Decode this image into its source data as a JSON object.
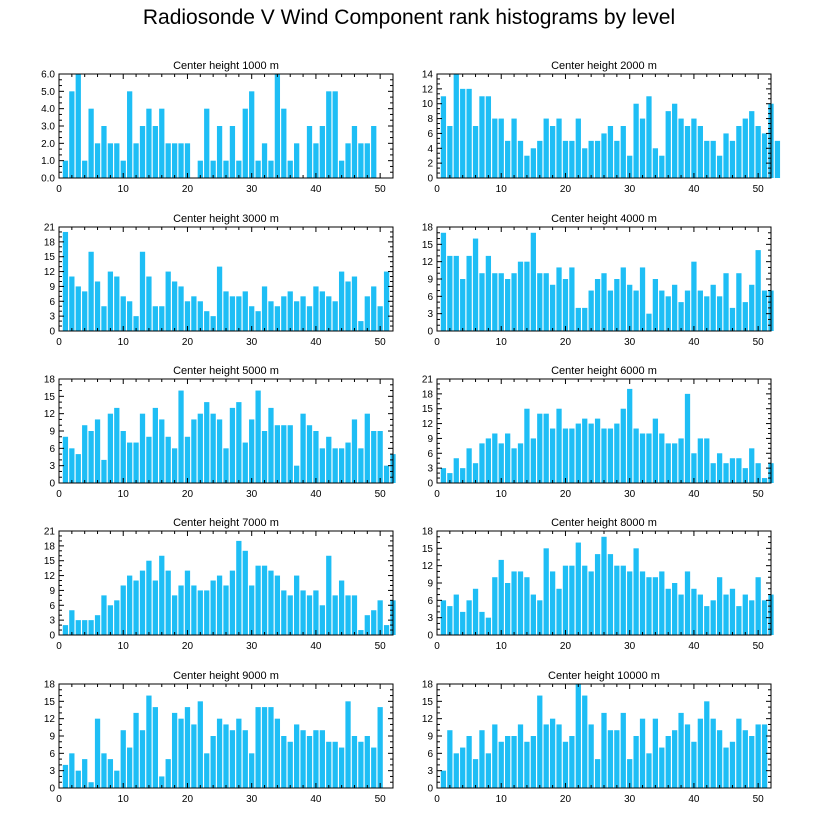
{
  "title": "Radiosonde V Wind Component rank histograms by level",
  "colors": {
    "bar": "#1EBEF5",
    "axis": "#000000"
  },
  "chart_data": [
    {
      "type": "bar",
      "title": "Center height 1000 m",
      "xlim": [
        0,
        52
      ],
      "xticks": [
        0,
        10,
        20,
        30,
        40,
        50
      ],
      "ylim": [
        0,
        6
      ],
      "yticks": [
        "0.0",
        "1.0",
        "2.0",
        "3.0",
        "4.0",
        "5.0",
        "6.0"
      ],
      "values": [
        1,
        5,
        6,
        1,
        4,
        2,
        3,
        2,
        2,
        1,
        5,
        2,
        3,
        4,
        3,
        4,
        2,
        2,
        2,
        2,
        0,
        1,
        4,
        1,
        3,
        1,
        3,
        1,
        4,
        5,
        1,
        2,
        1,
        6,
        4,
        1,
        2,
        0,
        3,
        2,
        3,
        5,
        5,
        1,
        2,
        3,
        2,
        2,
        3
      ]
    },
    {
      "type": "bar",
      "title": "Center height 2000 m",
      "xlim": [
        0,
        52
      ],
      "xticks": [
        0,
        10,
        20,
        30,
        40,
        50
      ],
      "ylim": [
        0,
        14
      ],
      "yticks": [
        "0",
        "2",
        "4",
        "6",
        "8",
        "10",
        "12",
        "14"
      ],
      "values": [
        11,
        7,
        14,
        12,
        12,
        7,
        11,
        11,
        8,
        8,
        5,
        8,
        5,
        3,
        4,
        5,
        8,
        7,
        8,
        5,
        5,
        8,
        4,
        5,
        5,
        6,
        7,
        5,
        7,
        3,
        10,
        8,
        11,
        4,
        3,
        9,
        10,
        8,
        7,
        8,
        7,
        5,
        5,
        3,
        6,
        5,
        7,
        8,
        9,
        7,
        6,
        10,
        5
      ]
    },
    {
      "type": "bar",
      "title": "Center height 3000 m",
      "xlim": [
        0,
        52
      ],
      "xticks": [
        0,
        10,
        20,
        30,
        40,
        50
      ],
      "ylim": [
        0,
        21
      ],
      "yticks": [
        "0",
        "3",
        "6",
        "9",
        "12",
        "15",
        "18",
        "21"
      ],
      "values": [
        20,
        11,
        9,
        8,
        16,
        10,
        5,
        12,
        11,
        7,
        6,
        3,
        16,
        11,
        5,
        5,
        12,
        10,
        9,
        6,
        7,
        6,
        4,
        3,
        13,
        8,
        7,
        7,
        8,
        5,
        4,
        9,
        6,
        5,
        7,
        8,
        6,
        7,
        5,
        9,
        8,
        7,
        6,
        12,
        10,
        11,
        2,
        7,
        9,
        5,
        12
      ]
    },
    {
      "type": "bar",
      "title": "Center height 4000 m",
      "xlim": [
        0,
        52
      ],
      "xticks": [
        0,
        10,
        20,
        30,
        40,
        50
      ],
      "ylim": [
        0,
        18
      ],
      "yticks": [
        "0",
        "3",
        "6",
        "9",
        "12",
        "15",
        "18"
      ],
      "values": [
        17,
        13,
        13,
        9,
        13,
        16,
        10,
        13,
        10,
        10,
        9,
        10,
        12,
        12,
        17,
        10,
        10,
        8,
        11,
        9,
        11,
        4,
        4,
        7,
        9,
        10,
        7,
        9,
        11,
        8,
        7,
        11,
        3,
        9,
        7,
        6,
        8,
        5,
        7,
        12,
        7,
        6,
        8,
        6,
        10,
        4,
        10,
        5,
        8,
        14,
        7,
        7
      ]
    },
    {
      "type": "bar",
      "title": "Center height 5000 m",
      "xlim": [
        0,
        52
      ],
      "xticks": [
        0,
        10,
        20,
        30,
        40,
        50
      ],
      "ylim": [
        0,
        18
      ],
      "yticks": [
        "0",
        "3",
        "6",
        "9",
        "12",
        "15",
        "18"
      ],
      "values": [
        8,
        6,
        5,
        10,
        9,
        11,
        4,
        12,
        13,
        9,
        7,
        7,
        12,
        8,
        13,
        11,
        8,
        6,
        16,
        8,
        11,
        12,
        14,
        12,
        11,
        6,
        13,
        14,
        7,
        11,
        16,
        9,
        13,
        10,
        10,
        10,
        3,
        12,
        10,
        9,
        6,
        8,
        6,
        6,
        7,
        11,
        6,
        12,
        9,
        9,
        3,
        5
      ]
    },
    {
      "type": "bar",
      "title": "Center height 6000 m",
      "xlim": [
        0,
        52
      ],
      "xticks": [
        0,
        10,
        20,
        30,
        40,
        50
      ],
      "ylim": [
        0,
        21
      ],
      "yticks": [
        "0",
        "3",
        "6",
        "9",
        "12",
        "15",
        "18",
        "21"
      ],
      "values": [
        3,
        2,
        5,
        3,
        7,
        4,
        8,
        9,
        10,
        8,
        10,
        7,
        8,
        15,
        9,
        14,
        14,
        11,
        15,
        11,
        11,
        12,
        13,
        12,
        13,
        11,
        11,
        12,
        15,
        19,
        11,
        10,
        10,
        13,
        10,
        8,
        8,
        9,
        18,
        6,
        9,
        9,
        4,
        6,
        4,
        5,
        5,
        3,
        7,
        4,
        1,
        4
      ]
    },
    {
      "type": "bar",
      "title": "Center height 7000 m",
      "xlim": [
        0,
        52
      ],
      "xticks": [
        0,
        10,
        20,
        30,
        40,
        50
      ],
      "ylim": [
        0,
        21
      ],
      "yticks": [
        "0",
        "3",
        "6",
        "9",
        "12",
        "15",
        "18",
        "21"
      ],
      "values": [
        2,
        5,
        3,
        3,
        3,
        4,
        8,
        6,
        7,
        10,
        12,
        11,
        13,
        15,
        11,
        16,
        13,
        8,
        10,
        13,
        10,
        9,
        9,
        11,
        12,
        10,
        13,
        19,
        17,
        10,
        14,
        14,
        13,
        12,
        9,
        8,
        12,
        9,
        8,
        9,
        6,
        16,
        8,
        11,
        8,
        8,
        1,
        4,
        5,
        7,
        2,
        7
      ]
    },
    {
      "type": "bar",
      "title": "Center height 8000 m",
      "xlim": [
        0,
        52
      ],
      "xticks": [
        0,
        10,
        20,
        30,
        40,
        50
      ],
      "ylim": [
        0,
        18
      ],
      "yticks": [
        "0",
        "3",
        "6",
        "9",
        "12",
        "15",
        "18"
      ],
      "values": [
        6,
        5,
        7,
        4,
        6,
        8,
        4,
        3,
        10,
        13,
        9,
        11,
        11,
        10,
        7,
        6,
        15,
        11,
        8,
        12,
        12,
        16,
        12,
        11,
        14,
        17,
        14,
        12,
        12,
        11,
        15,
        11,
        10,
        10,
        11,
        8,
        9,
        7,
        11,
        8,
        7,
        5,
        6,
        10,
        7,
        8,
        5,
        7,
        6,
        10,
        6,
        7
      ]
    },
    {
      "type": "bar",
      "title": "Center height 9000 m",
      "xlim": [
        0,
        52
      ],
      "xticks": [
        0,
        10,
        20,
        30,
        40,
        50
      ],
      "ylim": [
        0,
        18
      ],
      "yticks": [
        "0",
        "3",
        "6",
        "9",
        "12",
        "15",
        "18"
      ],
      "values": [
        4,
        6,
        3,
        5,
        1,
        12,
        6,
        5,
        3,
        10,
        7,
        13,
        10,
        16,
        14,
        2,
        5,
        13,
        12,
        14,
        11,
        15,
        6,
        9,
        12,
        11,
        10,
        12,
        10,
        6,
        14,
        14,
        14,
        12,
        9,
        8,
        11,
        10,
        9,
        10,
        10,
        8,
        8,
        7,
        15,
        9,
        8,
        9,
        7,
        14
      ]
    },
    {
      "type": "bar",
      "title": "Center height 10000 m",
      "xlim": [
        0,
        52
      ],
      "xticks": [
        0,
        10,
        20,
        30,
        40,
        50
      ],
      "ylim": [
        0,
        18
      ],
      "yticks": [
        "0",
        "3",
        "6",
        "9",
        "12",
        "15",
        "18"
      ],
      "values": [
        3,
        10,
        6,
        7,
        9,
        5,
        10,
        6,
        11,
        8,
        9,
        9,
        11,
        8,
        9,
        16,
        11,
        12,
        11,
        8,
        9,
        18,
        16,
        11,
        5,
        13,
        10,
        10,
        13,
        5,
        9,
        12,
        6,
        12,
        7,
        9,
        10,
        13,
        11,
        8,
        12,
        15,
        12,
        10,
        7,
        8,
        12,
        10,
        9,
        11,
        11
      ]
    }
  ]
}
